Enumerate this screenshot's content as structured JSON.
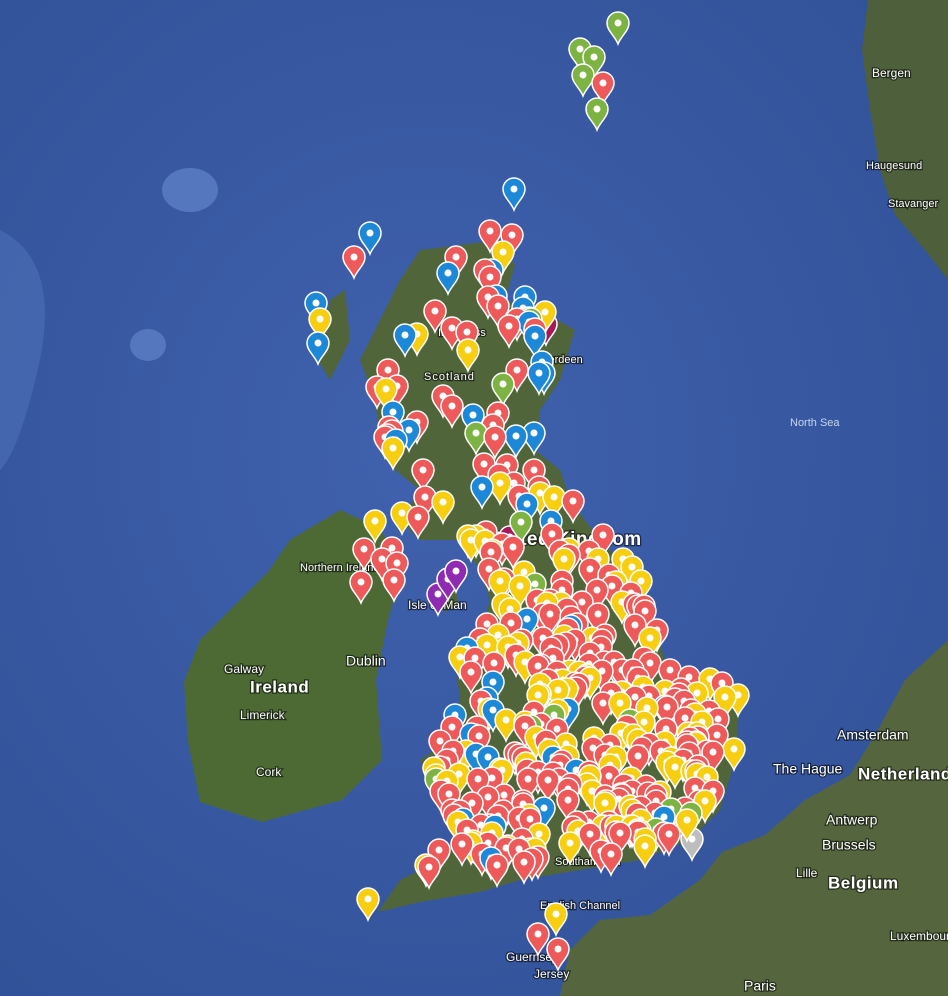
{
  "map": {
    "places": {
      "bergen": "Bergen",
      "haugesund": "Haugesund",
      "stavanger": "Stavanger",
      "north_sea": "North Sea",
      "inverness": "Inverness",
      "aberdeen": "Aberdeen",
      "scotland": "Scotland",
      "united_kingdom": "United Kingdom",
      "northern_ireland": "Northern Ireland",
      "isle_of_man": "Isle of Man",
      "dublin": "Dublin",
      "ireland": "Ireland",
      "galway": "Galway",
      "limerick": "Limerick",
      "cork": "Cork",
      "amsterdam": "Amsterdam",
      "the_hague": "The Hague",
      "netherlands": "Netherlands",
      "antwerp": "Antwerp",
      "brussels": "Brussels",
      "lille": "Lille",
      "belgium": "Belgium",
      "luxembourg": "Luxembourg",
      "paris": "Paris",
      "guernsey": "Guernsey",
      "jersey": "Jersey",
      "english_channel": "English Channel",
      "southampton": "Southampton"
    }
  }
}
